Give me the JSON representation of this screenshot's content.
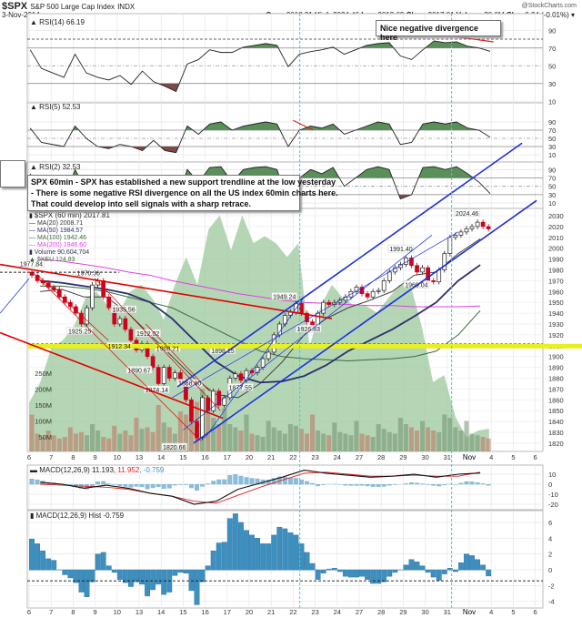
{
  "header": {
    "symbol": "$SPX",
    "name": "S&P 500 Large Cap Index",
    "exchange": "INDX",
    "date": "3-Nov-2014",
    "brand": "@StockCharts.com",
    "open_label": "Open",
    "open": "2018.21",
    "high_label": "High",
    "high": "2024.46",
    "low_label": "Low",
    "low": "2013.69",
    "close_label": "Close",
    "close": "2017.81",
    "volume_label": "Volume",
    "volume": "20.0M",
    "chg_label": "Chg",
    "chg": "-0.24 (-0.01%)"
  },
  "notes": {
    "divergence": "Nice negative divergence here",
    "main_1": "SPX 60min - SPX has established a new support trendline at the low yesterday",
    "main_2": "- There is some negative RSI divergence on all the US index 60min charts here.",
    "main_3": "That could develop into sell signals with a sharp retrace."
  },
  "legend": {
    "rsi14": "RSI(14) 66.19",
    "rsi5": "RSI(5) 52.53",
    "rsi2": "RSI(2) 32.53",
    "price": "$SPX (60 min) 2017.81",
    "ma20": "MA(20) 2008.71",
    "ma50": "MA(50) 1984.57",
    "ma100": "MA(100) 1942.46",
    "ma200": "MA(200) 1946.60",
    "volume": "Volume 90,604,704",
    "xeu": "$XEU 124.83",
    "macd_a": "MACD(12,26,9) 11.193, ",
    "macd_b": "11.952",
    "macd_c": ", -0.759",
    "hist": "MACD(12,26,9) Hist -0.759"
  },
  "colors": {
    "up": "#ffffff",
    "down": "#d0021b",
    "ma20": "#333333",
    "ma50": "#2a2f6e",
    "ma100": "#3d6b3d",
    "ma200": "#e040e0",
    "xeu": "#9cc89c",
    "trend_red": "#e00000",
    "trend_blue": "#1a2fe0",
    "hist": "#3d8fc0",
    "highlight": "#e8f020",
    "cyan": "#30d0e0"
  },
  "chart_data": {
    "type": "candlestick",
    "x_ticks": [
      "6",
      "7",
      "8",
      "9",
      "10",
      "13",
      "14",
      "15",
      "16",
      "17",
      "20",
      "21",
      "22",
      "23",
      "24",
      "27",
      "28",
      "29",
      "30",
      "31",
      "Nov",
      "4",
      "5",
      "6"
    ],
    "price_ticks": [
      2030,
      2020,
      2010,
      2000,
      1990,
      1980,
      1970,
      1960,
      1950,
      1940,
      1930,
      1920,
      1910,
      1900,
      1890,
      1880,
      1870,
      1860,
      1850,
      1840,
      1830,
      1820
    ],
    "volume_ticks": [
      "250M",
      "200M",
      "150M",
      "100M",
      "50M"
    ],
    "volume_tick_values": [
      250,
      200,
      150,
      100,
      50
    ],
    "rsi_ticks": [
      90,
      70,
      50,
      30,
      10
    ],
    "macd_ticks": [
      10,
      0,
      -10,
      -20
    ],
    "hist_ticks": [
      6,
      4,
      2,
      0,
      -2,
      -4
    ],
    "closes": [
      1975,
      1970,
      1968,
      1964,
      1962,
      1955,
      1950,
      1946,
      1940,
      1930,
      1945,
      1966,
      1970,
      1955,
      1945,
      1930,
      1935,
      1925,
      1915,
      1906,
      1912,
      1900,
      1890,
      1875,
      1890,
      1880,
      1885,
      1877,
      1860,
      1840,
      1825,
      1862,
      1850,
      1868,
      1855,
      1862,
      1880,
      1884,
      1878,
      1887,
      1885,
      1890,
      1898,
      1904,
      1920,
      1930,
      1938,
      1941,
      1949,
      1940,
      1932,
      1927,
      1940,
      1950,
      1948,
      1950,
      1952,
      1955,
      1960,
      1964,
      1958,
      1955,
      1960,
      1961,
      1970,
      1978,
      1982,
      1985,
      1991,
      1984,
      1978,
      1982,
      1970,
      1969,
      1980,
      1995,
      2010,
      2012,
      2015,
      2018,
      2020,
      2024,
      2020,
      2017.81
    ],
    "volumes": [
      120,
      60,
      50,
      70,
      55,
      45,
      50,
      80,
      60,
      65,
      55,
      90,
      70,
      50,
      45,
      85,
      60,
      70,
      55,
      110,
      75,
      80,
      65,
      150,
      95,
      80,
      60,
      130,
      120,
      140,
      160,
      200,
      130,
      110,
      90,
      140,
      90,
      80,
      70,
      120,
      60,
      55,
      50,
      100,
      80,
      70,
      60,
      90,
      85,
      75,
      60,
      120,
      70,
      60,
      55,
      95,
      65,
      60,
      55,
      100,
      60,
      55,
      50,
      90,
      75,
      65,
      60,
      110,
      90,
      80,
      70,
      100,
      80,
      70,
      65,
      120,
      110,
      80,
      70,
      100,
      60,
      55,
      50,
      45
    ],
    "xeu": [
      125.2,
      125.5,
      126.0,
      126.1,
      126.3,
      126.7,
      126.8,
      126.6,
      126.5,
      126.8,
      126.9,
      126.7,
      126.4,
      126.9,
      127.3,
      126.9,
      127.7,
      127.9,
      127.4,
      127.9,
      127.5,
      127.6,
      127.5,
      127.3,
      127.5,
      126.0,
      126.6,
      126.9,
      126.7,
      126.6,
      126.6,
      126.5,
      126.7,
      126.9,
      126.9,
      126.3,
      125.5,
      125.6,
      125.0,
      124.7,
      124.8,
      124.83
    ],
    "ma20": [
      1960,
      1962,
      1955,
      1955,
      1940,
      1920,
      1900,
      1880,
      1865,
      1862,
      1875,
      1895,
      1920,
      1935,
      1945,
      1952,
      1960,
      1975,
      1978,
      1995,
      2008.71
    ],
    "ma50": [
      1970,
      1968,
      1965,
      1962,
      1958,
      1950,
      1935,
      1915,
      1895,
      1882,
      1876,
      1877,
      1882,
      1892,
      1905,
      1915,
      1925,
      1937,
      1950,
      1970,
      1984.57
    ],
    "ma100": [
      1965,
      1965,
      1963,
      1960,
      1955,
      1950,
      1945,
      1935,
      1925,
      1915,
      1905,
      1900,
      1898,
      1897,
      1896,
      1897,
      1898,
      1900,
      1905,
      1920,
      1942.46
    ],
    "ma200": [
      1990,
      1988,
      1985,
      1982,
      1978,
      1975,
      1970,
      1966,
      1962,
      1958,
      1955,
      1952,
      1950,
      1949,
      1948,
      1947,
      1947,
      1946,
      1946,
      1946,
      1946.6
    ],
    "rsi14": [
      68,
      47,
      42,
      37,
      63,
      42,
      37,
      34,
      39,
      29,
      44,
      32,
      27,
      21,
      52,
      57,
      68,
      65,
      65,
      71,
      73,
      75,
      73,
      49,
      63,
      66,
      68,
      71,
      63,
      68,
      73,
      75,
      76,
      61,
      57,
      68,
      78,
      76,
      77,
      72,
      70,
      66.19
    ],
    "rsi5": [
      75,
      40,
      35,
      30,
      80,
      50,
      30,
      25,
      35,
      30,
      20,
      45,
      20,
      15,
      80,
      60,
      85,
      90,
      70,
      80,
      85,
      90,
      85,
      30,
      70,
      80,
      75,
      85,
      60,
      70,
      80,
      90,
      85,
      35,
      40,
      85,
      90,
      85,
      90,
      75,
      70,
      52.53
    ],
    "rsi2": [
      80,
      25,
      20,
      15,
      90,
      40,
      20,
      10,
      30,
      15,
      10,
      50,
      10,
      5,
      90,
      60,
      95,
      97,
      60,
      90,
      95,
      97,
      90,
      10,
      70,
      90,
      80,
      95,
      50,
      70,
      90,
      97,
      90,
      20,
      30,
      95,
      97,
      90,
      97,
      80,
      60,
      32.53
    ],
    "macd": [
      2,
      0,
      -4,
      -1,
      -4,
      -9,
      -12,
      -20,
      -17,
      -5,
      1,
      7,
      14,
      11,
      9,
      7,
      8,
      10,
      7,
      10,
      11.193
    ],
    "signal": [
      0,
      -1,
      -2,
      -3,
      -5,
      -9,
      -12,
      -17,
      -19,
      -11,
      -3,
      4,
      11,
      12,
      10,
      8,
      8,
      9,
      8,
      8,
      11.952
    ],
    "hist": [
      3.9,
      3.3,
      2.4,
      1.4,
      1.2,
      0,
      -0.6,
      -1,
      -1.6,
      -2.8,
      -3.4,
      -1.5,
      2.0,
      2.2,
      0.5,
      -0.3,
      -1.2,
      -1.6,
      -2.1,
      -1.5,
      -1.8,
      -3.3,
      -2.5,
      -1.8,
      -3.1,
      -2.8,
      -0.7,
      -0.3,
      -0.4,
      -2.6,
      -4.4,
      -1.5,
      0.5,
      2.4,
      3.4,
      3.5,
      6.5,
      7.1,
      6.0,
      5.0,
      4.4,
      4.0,
      3.3,
      3.3,
      4.4,
      5.4,
      5.2,
      4.7,
      4.4,
      3.3,
      2.2,
      0.8,
      -1.2,
      -0.4,
      0.1,
      0.2,
      -0.2,
      -0.8,
      -0.9,
      -0.9,
      -0.8,
      -1.2,
      -1.7,
      -1.7,
      -1.5,
      -0.8,
      -0.3,
      0,
      0.6,
      1.3,
      1.0,
      0.5,
      -0.3,
      -0.9,
      -1.3,
      -0.5,
      0.2,
      -0.2,
      0.9,
      2.0,
      1.8,
      1.3,
      0.6,
      -0.759
    ],
    "hist_dashed_level": -1.4,
    "support_level": 1910,
    "old_high_level": 1977.84,
    "cyan_markers_day": [
      12.3,
      19.2
    ],
    "price_labels": [
      {
        "t": "1977.84",
        "d": 0.1,
        "p": 1984
      },
      {
        "t": "1970.36",
        "d": 2.7,
        "p": 1976
      },
      {
        "t": "1935.56",
        "d": 4.3,
        "p": 1942
      },
      {
        "t": "1925.25",
        "d": 2.3,
        "p": 1922
      },
      {
        "t": "1912.02",
        "d": 5.4,
        "p": 1920
      },
      {
        "t": "1912.34",
        "d": 4.1,
        "p": 1908
      },
      {
        "t": "1908.21",
        "d": 6.3,
        "p": 1906
      },
      {
        "t": "1898.15",
        "d": 8.8,
        "p": 1904
      },
      {
        "t": "1890.67",
        "d": 5.0,
        "p": 1886
      },
      {
        "t": "1874.14",
        "d": 5.8,
        "p": 1868
      },
      {
        "t": "1868.80",
        "d": 7.3,
        "p": 1874
      },
      {
        "t": "1877.55",
        "d": 9.6,
        "p": 1870
      },
      {
        "t": "1949.24",
        "d": 11.6,
        "p": 1954
      },
      {
        "t": "1926.83",
        "d": 12.7,
        "p": 1924
      },
      {
        "t": "1991.40",
        "d": 16.9,
        "p": 1998
      },
      {
        "t": "1969.04",
        "d": 17.6,
        "p": 1965
      },
      {
        "t": "2024.46",
        "d": 19.9,
        "p": 2031
      },
      {
        "t": "1820.66",
        "d": 6.6,
        "p": 1815
      }
    ],
    "trendlines": [
      {
        "c": "trend_red",
        "w": 1.6,
        "a": [
          -1.32,
          1985
        ],
        "b": [
          13.76,
          1935
        ]
      },
      {
        "c": "trend_red",
        "w": 1.6,
        "a": [
          -1.32,
          1922
        ],
        "b": [
          8.8,
          1843
        ]
      },
      {
        "c": "trend_red",
        "w": 0.7,
        "a": [
          0.2,
          1977
        ],
        "b": [
          7.8,
          1822
        ]
      },
      {
        "c": "trend_red",
        "w": 0.7,
        "a": [
          0.4,
          1975
        ],
        "b": [
          3.6,
          1915
        ]
      },
      {
        "c": "trend_red",
        "w": 0.7,
        "a": [
          3.0,
          1972
        ],
        "b": [
          8.7,
          1850
        ]
      },
      {
        "c": "trend_red",
        "w": 0.7,
        "a": [
          5.3,
          1930
        ],
        "b": [
          8.2,
          1868
        ]
      },
      {
        "c": "trend_blue",
        "w": 1.6,
        "a": [
          6.74,
          1872
        ],
        "b": [
          22.4,
          2097
        ]
      },
      {
        "c": "trend_blue",
        "w": 1.6,
        "a": [
          7.48,
          1820
        ],
        "b": [
          23.06,
          2044
        ]
      },
      {
        "c": "trend_blue",
        "w": 0.7,
        "a": [
          7.0,
          1832
        ],
        "b": [
          18.3,
          2012
        ]
      },
      {
        "c": "trend_blue",
        "w": 0.7,
        "a": [
          6.5,
          1862
        ],
        "b": [
          19.5,
          2015
        ]
      },
      {
        "c": "trend_blue",
        "w": 0.7,
        "a": [
          8.0,
          1825
        ],
        "b": [
          12.5,
          1955
        ]
      },
      {
        "c": "trend_blue",
        "w": 0.7,
        "a": [
          -1.32,
          1940
        ],
        "b": [
          0,
          1972
        ]
      }
    ]
  }
}
